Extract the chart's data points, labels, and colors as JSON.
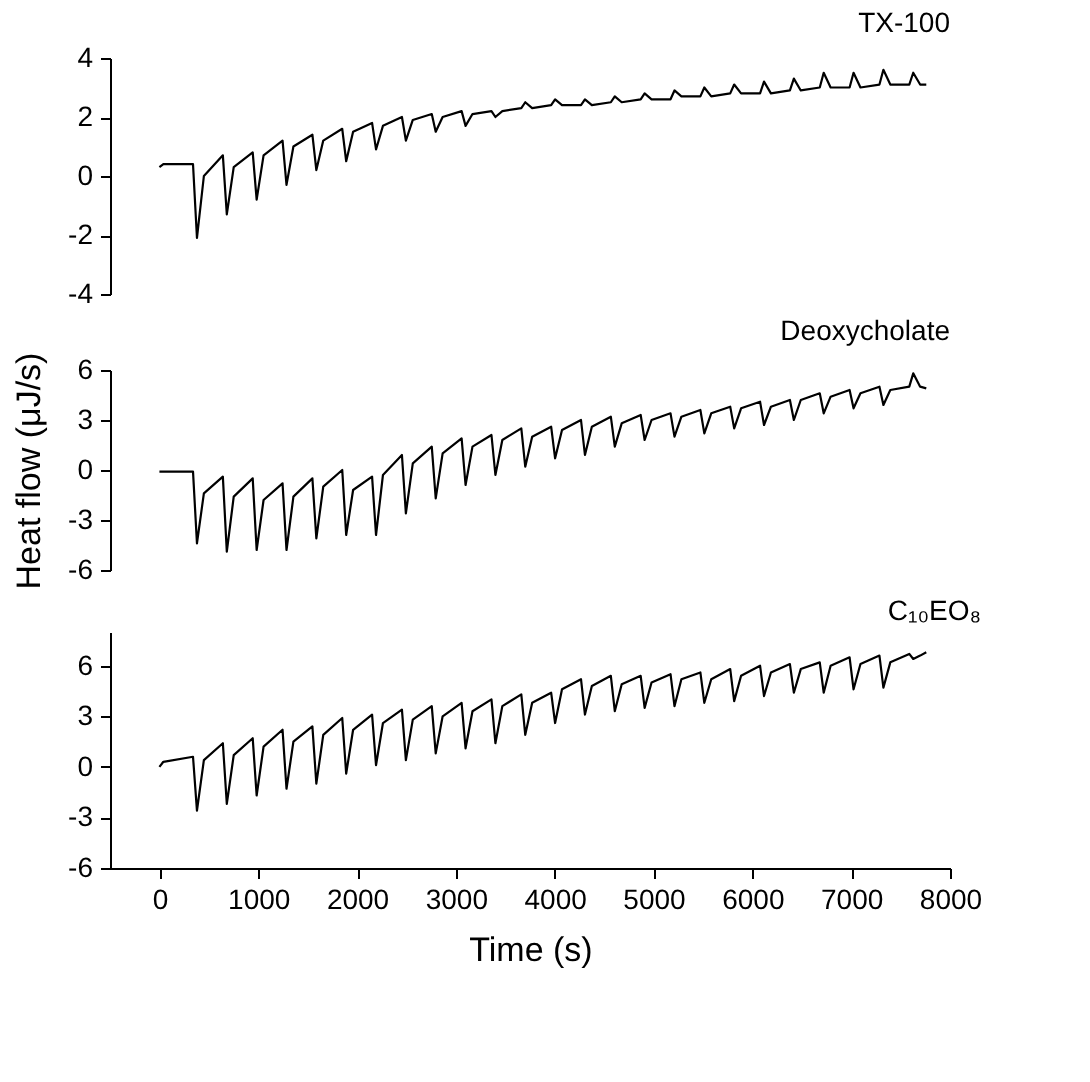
{
  "chart_data": [
    {
      "type": "line",
      "title": "TX-100",
      "color": "#000000",
      "xlim": [
        -500,
        8000
      ],
      "xticks": [
        0,
        1000,
        2000,
        3000,
        4000,
        5000,
        6000,
        7000,
        8000
      ],
      "ylim": [
        -4,
        4
      ],
      "yticks": [
        -4,
        -2,
        0,
        2,
        4
      ],
      "tick_labels": "y",
      "grid": false,
      "x": [
        0,
        40,
        340,
        380,
        450,
        642,
        682,
        752,
        944,
        984,
        1054,
        1246,
        1286,
        1356,
        1548,
        1588,
        1658,
        1850,
        1890,
        1960,
        2152,
        2192,
        2262,
        2454,
        2494,
        2564,
        2756,
        2796,
        2866,
        3058,
        3098,
        3168,
        3360,
        3400,
        3470,
        3662,
        3702,
        3772,
        3964,
        4004,
        4074,
        4266,
        4306,
        4376,
        4568,
        4608,
        4678,
        4870,
        4910,
        4980,
        5172,
        5212,
        5282,
        5474,
        5514,
        5584,
        5776,
        5816,
        5886,
        6078,
        6118,
        6188,
        6380,
        6420,
        6490,
        6682,
        6722,
        6792,
        6984,
        7024,
        7094,
        7286,
        7326,
        7396,
        7588,
        7628,
        7698,
        7760
      ],
      "values": [
        0.3,
        0.4,
        0.4,
        -2.1,
        0.0,
        0.7,
        -1.3,
        0.3,
        0.8,
        -0.8,
        0.7,
        1.2,
        -0.3,
        1.0,
        1.4,
        0.2,
        1.2,
        1.6,
        0.5,
        1.5,
        1.8,
        0.9,
        1.7,
        2.0,
        1.2,
        1.9,
        2.1,
        1.5,
        2.0,
        2.2,
        1.7,
        2.1,
        2.2,
        2.0,
        2.2,
        2.3,
        2.5,
        2.3,
        2.4,
        2.6,
        2.4,
        2.4,
        2.6,
        2.4,
        2.5,
        2.7,
        2.5,
        2.6,
        2.8,
        2.6,
        2.6,
        2.9,
        2.7,
        2.7,
        3.0,
        2.7,
        2.8,
        3.1,
        2.8,
        2.8,
        3.2,
        2.8,
        2.9,
        3.3,
        2.9,
        3.0,
        3.5,
        3.0,
        3.0,
        3.5,
        3.0,
        3.1,
        3.6,
        3.1,
        3.1,
        3.5,
        3.1,
        3.1
      ]
    },
    {
      "type": "line",
      "title": "Deoxycholate",
      "ylabel": "Heat flow (μJ/s)",
      "color": "#000000",
      "xlim": [
        -500,
        8000
      ],
      "xticks": [
        0,
        1000,
        2000,
        3000,
        4000,
        5000,
        6000,
        7000,
        8000
      ],
      "ylim": [
        -6,
        6
      ],
      "yticks": [
        -6,
        -3,
        0,
        3,
        6
      ],
      "tick_labels": "y",
      "grid": false,
      "x": [
        0,
        40,
        340,
        380,
        450,
        642,
        682,
        752,
        944,
        984,
        1054,
        1246,
        1286,
        1356,
        1548,
        1588,
        1658,
        1850,
        1890,
        1960,
        2152,
        2192,
        2262,
        2454,
        2494,
        2564,
        2756,
        2796,
        2866,
        3058,
        3098,
        3168,
        3360,
        3400,
        3470,
        3662,
        3702,
        3772,
        3964,
        4004,
        4074,
        4266,
        4306,
        4376,
        4568,
        4608,
        4678,
        4870,
        4910,
        4980,
        5172,
        5212,
        5282,
        5474,
        5514,
        5584,
        5776,
        5816,
        5886,
        6078,
        6118,
        6188,
        6380,
        6420,
        6490,
        6682,
        6722,
        6792,
        6984,
        7024,
        7094,
        7286,
        7326,
        7396,
        7588,
        7628,
        7698,
        7760
      ],
      "values": [
        -0.1,
        -0.1,
        -0.1,
        -4.4,
        -1.4,
        -0.4,
        -4.9,
        -1.6,
        -0.5,
        -4.8,
        -1.8,
        -0.8,
        -4.8,
        -1.6,
        -0.5,
        -4.1,
        -1.0,
        0.0,
        -3.9,
        -1.2,
        -0.4,
        -3.9,
        -0.3,
        0.9,
        -2.6,
        0.4,
        1.4,
        -1.7,
        1.0,
        1.9,
        -0.9,
        1.4,
        2.1,
        -0.3,
        1.8,
        2.5,
        0.2,
        2.0,
        2.6,
        0.7,
        2.4,
        3.0,
        0.9,
        2.6,
        3.2,
        1.4,
        2.8,
        3.3,
        1.8,
        3.0,
        3.4,
        2.0,
        3.2,
        3.6,
        2.2,
        3.4,
        3.8,
        2.5,
        3.7,
        4.1,
        2.7,
        3.8,
        4.2,
        3.0,
        4.2,
        4.6,
        3.4,
        4.4,
        4.8,
        3.7,
        4.6,
        5.0,
        3.9,
        4.8,
        5.0,
        5.8,
        5.0,
        4.9
      ]
    },
    {
      "type": "line",
      "title": "C₁₀EO₈",
      "xlabel": "Time (s)",
      "color": "#000000",
      "xlim": [
        -500,
        8000
      ],
      "xticks": [
        0,
        1000,
        2000,
        3000,
        4000,
        5000,
        6000,
        7000,
        8000
      ],
      "ylim": [
        -6,
        8
      ],
      "yticks": [
        -6,
        -3,
        0,
        3,
        6
      ],
      "grid": false,
      "x": [
        0,
        40,
        340,
        380,
        450,
        642,
        682,
        752,
        944,
        984,
        1054,
        1246,
        1286,
        1356,
        1548,
        1588,
        1658,
        1850,
        1890,
        1960,
        2152,
        2192,
        2262,
        2454,
        2494,
        2564,
        2756,
        2796,
        2866,
        3058,
        3098,
        3168,
        3360,
        3400,
        3470,
        3662,
        3702,
        3772,
        3964,
        4004,
        4074,
        4266,
        4306,
        4376,
        4568,
        4608,
        4678,
        4870,
        4910,
        4980,
        5172,
        5212,
        5282,
        5474,
        5514,
        5584,
        5776,
        5816,
        5886,
        6078,
        6118,
        6188,
        6380,
        6420,
        6490,
        6682,
        6722,
        6792,
        6984,
        7024,
        7094,
        7286,
        7326,
        7396,
        7588,
        7628,
        7698,
        7760
      ],
      "values": [
        0.0,
        0.3,
        0.6,
        -2.6,
        0.4,
        1.4,
        -2.2,
        0.7,
        1.7,
        -1.7,
        1.2,
        2.2,
        -1.3,
        1.5,
        2.4,
        -1.0,
        1.9,
        2.9,
        -0.4,
        2.2,
        3.1,
        0.1,
        2.6,
        3.4,
        0.4,
        2.8,
        3.6,
        0.8,
        3.0,
        3.8,
        1.1,
        3.3,
        4.0,
        1.4,
        3.6,
        4.3,
        1.9,
        3.8,
        4.4,
        2.6,
        4.6,
        5.2,
        3.1,
        4.8,
        5.4,
        3.3,
        4.9,
        5.4,
        3.5,
        5.0,
        5.5,
        3.6,
        5.2,
        5.6,
        3.8,
        5.2,
        5.8,
        3.9,
        5.4,
        6.0,
        4.2,
        5.6,
        6.1,
        4.4,
        5.8,
        6.2,
        4.4,
        6.0,
        6.5,
        4.6,
        6.1,
        6.6,
        4.7,
        6.2,
        6.7,
        6.4,
        6.6,
        6.8
      ]
    }
  ]
}
